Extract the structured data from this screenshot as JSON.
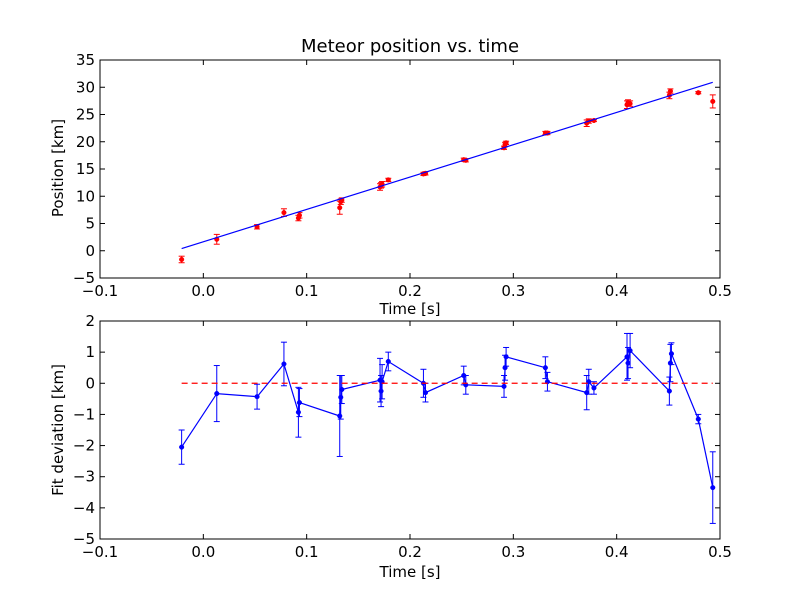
{
  "chart_data": [
    {
      "type": "scatter",
      "title": "Meteor position vs. time",
      "xlabel": "Time [s]",
      "ylabel": "Position [km]",
      "xlim": [
        -0.1,
        0.5
      ],
      "ylim": [
        -5,
        35
      ],
      "xticks": [
        -0.1,
        0.0,
        0.1,
        0.2,
        0.3,
        0.4,
        0.5
      ],
      "xtick_labels": [
        "−0.1",
        "0.0",
        "0.1",
        "0.2",
        "0.3",
        "0.4",
        "0.5"
      ],
      "yticks": [
        -5,
        0,
        5,
        10,
        15,
        20,
        25,
        30,
        35
      ],
      "ytick_labels": [
        "−5",
        "0",
        "5",
        "10",
        "15",
        "20",
        "25",
        "30",
        "35"
      ],
      "grid": false,
      "series": [
        {
          "kind": "errorbar-points",
          "color": "#ff0000",
          "points": [
            {
              "x": -0.021,
              "y": -1.6,
              "err": 0.6
            },
            {
              "x": 0.013,
              "y": 2.1,
              "err": 0.9
            },
            {
              "x": 0.052,
              "y": 4.4,
              "err": 0.4
            },
            {
              "x": 0.078,
              "y": 7.0,
              "err": 0.7
            },
            {
              "x": 0.092,
              "y": 6.0,
              "err": 0.5
            },
            {
              "x": 0.093,
              "y": 6.5,
              "err": 0.5
            },
            {
              "x": 0.132,
              "y": 7.9,
              "err": 1.2
            },
            {
              "x": 0.133,
              "y": 9.0,
              "err": 0.5
            },
            {
              "x": 0.134,
              "y": 9.3,
              "err": 0.4
            },
            {
              "x": 0.171,
              "y": 11.7,
              "err": 0.6
            },
            {
              "x": 0.172,
              "y": 12.0,
              "err": 0.5
            },
            {
              "x": 0.173,
              "y": 12.2,
              "err": 0.5
            },
            {
              "x": 0.179,
              "y": 13.0,
              "err": 0.3
            },
            {
              "x": 0.213,
              "y": 14.1,
              "err": 0.3
            },
            {
              "x": 0.215,
              "y": 14.2,
              "err": 0.3
            },
            {
              "x": 0.252,
              "y": 16.7,
              "err": 0.3
            },
            {
              "x": 0.254,
              "y": 16.6,
              "err": 0.3
            },
            {
              "x": 0.291,
              "y": 18.9,
              "err": 0.3
            },
            {
              "x": 0.292,
              "y": 19.5,
              "err": 0.4
            },
            {
              "x": 0.293,
              "y": 19.8,
              "err": 0.3
            },
            {
              "x": 0.331,
              "y": 21.6,
              "err": 0.3
            },
            {
              "x": 0.333,
              "y": 21.6,
              "err": 0.3
            },
            {
              "x": 0.371,
              "y": 23.4,
              "err": 0.6
            },
            {
              "x": 0.373,
              "y": 23.8,
              "err": 0.4
            },
            {
              "x": 0.378,
              "y": 23.9,
              "err": 0.2
            },
            {
              "x": 0.41,
              "y": 26.8,
              "err": 0.7
            },
            {
              "x": 0.411,
              "y": 27.2,
              "err": 0.5
            },
            {
              "x": 0.413,
              "y": 27.0,
              "err": 0.5
            },
            {
              "x": 0.451,
              "y": 28.5,
              "err": 0.6
            },
            {
              "x": 0.452,
              "y": 29.3,
              "err": 0.4
            },
            {
              "x": 0.479,
              "y": 29.0,
              "err": 0.2
            },
            {
              "x": 0.493,
              "y": 27.4,
              "err": 1.2
            }
          ]
        },
        {
          "kind": "fit-line",
          "color": "#0000ff",
          "points": [
            {
              "x": -0.021,
              "y": 0.4
            },
            {
              "x": 0.493,
              "y": 30.9
            }
          ]
        }
      ]
    },
    {
      "type": "line",
      "title": "",
      "xlabel": "Time [s]",
      "ylabel": "Fit deviation [km]",
      "xlim": [
        -0.1,
        0.5
      ],
      "ylim": [
        -5,
        2
      ],
      "xticks": [
        -0.1,
        0.0,
        0.1,
        0.2,
        0.3,
        0.4,
        0.5
      ],
      "xtick_labels": [
        "−0.1",
        "0.0",
        "0.1",
        "0.2",
        "0.3",
        "0.4",
        "0.5"
      ],
      "yticks": [
        -5,
        -4,
        -3,
        -2,
        -1,
        0,
        1,
        2
      ],
      "ytick_labels": [
        "−5",
        "−4",
        "−3",
        "−2",
        "−1",
        "0",
        "1",
        "2"
      ],
      "grid": false,
      "series": [
        {
          "kind": "errorbar-line",
          "color": "#0000ff",
          "points": [
            {
              "x": -0.021,
              "y": -2.05,
              "err": 0.55
            },
            {
              "x": 0.013,
              "y": -0.33,
              "err": 0.9
            },
            {
              "x": 0.052,
              "y": -0.43,
              "err": 0.4
            },
            {
              "x": 0.078,
              "y": 0.62,
              "err": 0.7
            },
            {
              "x": 0.092,
              "y": -0.93,
              "err": 0.8
            },
            {
              "x": 0.093,
              "y": -0.62,
              "err": 0.45
            },
            {
              "x": 0.132,
              "y": -1.05,
              "err": 1.3
            },
            {
              "x": 0.133,
              "y": -0.45,
              "err": 0.7
            },
            {
              "x": 0.134,
              "y": -0.2,
              "err": 0.45
            },
            {
              "x": 0.171,
              "y": 0.1,
              "err": 0.7
            },
            {
              "x": 0.172,
              "y": -0.25,
              "err": 0.5
            },
            {
              "x": 0.173,
              "y": 0.05,
              "err": 0.55
            },
            {
              "x": 0.179,
              "y": 0.7,
              "err": 0.3
            },
            {
              "x": 0.213,
              "y": 0.0,
              "err": 0.45
            },
            {
              "x": 0.215,
              "y": -0.3,
              "err": 0.3
            },
            {
              "x": 0.252,
              "y": 0.25,
              "err": 0.3
            },
            {
              "x": 0.254,
              "y": -0.05,
              "err": 0.3
            },
            {
              "x": 0.291,
              "y": -0.1,
              "err": 0.35
            },
            {
              "x": 0.292,
              "y": 0.5,
              "err": 0.4
            },
            {
              "x": 0.293,
              "y": 0.85,
              "err": 0.3
            },
            {
              "x": 0.331,
              "y": 0.5,
              "err": 0.35
            },
            {
              "x": 0.333,
              "y": 0.05,
              "err": 0.3
            },
            {
              "x": 0.371,
              "y": -0.3,
              "err": 0.55
            },
            {
              "x": 0.373,
              "y": 0.05,
              "err": 0.4
            },
            {
              "x": 0.378,
              "y": -0.15,
              "err": 0.2
            },
            {
              "x": 0.41,
              "y": 0.85,
              "err": 0.75
            },
            {
              "x": 0.411,
              "y": 0.65,
              "err": 0.5
            },
            {
              "x": 0.413,
              "y": 1.05,
              "err": 0.55
            },
            {
              "x": 0.451,
              "y": -0.25,
              "err": 0.45
            },
            {
              "x": 0.452,
              "y": 0.65,
              "err": 0.6
            },
            {
              "x": 0.453,
              "y": 0.95,
              "err": 0.35
            },
            {
              "x": 0.479,
              "y": -1.15,
              "err": 0.15
            },
            {
              "x": 0.493,
              "y": -3.35,
              "err": 1.15
            }
          ]
        },
        {
          "kind": "reference-line",
          "color": "#ff0000",
          "style": "dashed",
          "points": [
            {
              "x": -0.021,
              "y": 0
            },
            {
              "x": 0.493,
              "y": 0
            }
          ]
        }
      ]
    }
  ]
}
